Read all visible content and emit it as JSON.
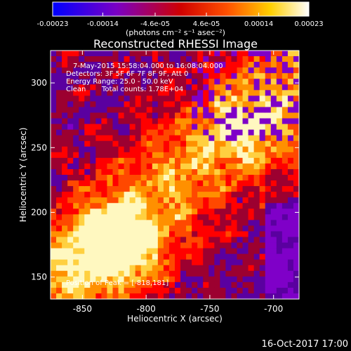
{
  "colorbar": {
    "tick_labels": [
      "-0.00023",
      "-0.00014",
      "-4.6e-05",
      "4.6e-05",
      "0.00014",
      "0.00023"
    ],
    "tick_values": [
      -0.00023,
      -0.00014,
      -4.6e-05,
      4.6e-05,
      0.00014,
      0.00023
    ],
    "range": [
      -0.00023,
      0.00023
    ],
    "unit_label": "(photons cm⁻² s⁻¹ asec⁻²)",
    "colors": [
      "#0000ff",
      "#7f00c8",
      "#ff0000",
      "#ff9000",
      "#ffff00",
      "#ffffff"
    ]
  },
  "plot": {
    "title": "Reconstructed RHESSI Image",
    "xlabel": "Heliocentric X (arcsec)",
    "ylabel": "Heliocentric Y (arcsec)",
    "xticks": [
      "-850",
      "-800",
      "-750",
      "-700"
    ],
    "xtick_values": [
      -850,
      -800,
      -750,
      -700
    ],
    "yticks": [
      "150",
      "200",
      "250",
      "300"
    ],
    "ytick_values": [
      150,
      200,
      250,
      300
    ],
    "xlim": [
      -875,
      -680
    ],
    "ylim": [
      133,
      325
    ]
  },
  "info": {
    "line1": "7-May-2015 15:58:04.000 to 16:08:04.000",
    "line2": "Detectors: 3F 5F 6F 7F 8F 9F, Att 0",
    "line3": "Energy Range: 25.0 - 50.0 keV",
    "line4_label": "Clean",
    "line4_counts": "Total counts: 1.78E+04",
    "peak": "Position of Peak = [-818,181]"
  },
  "footer": {
    "date": "16-Oct-2017 17:00"
  }
}
